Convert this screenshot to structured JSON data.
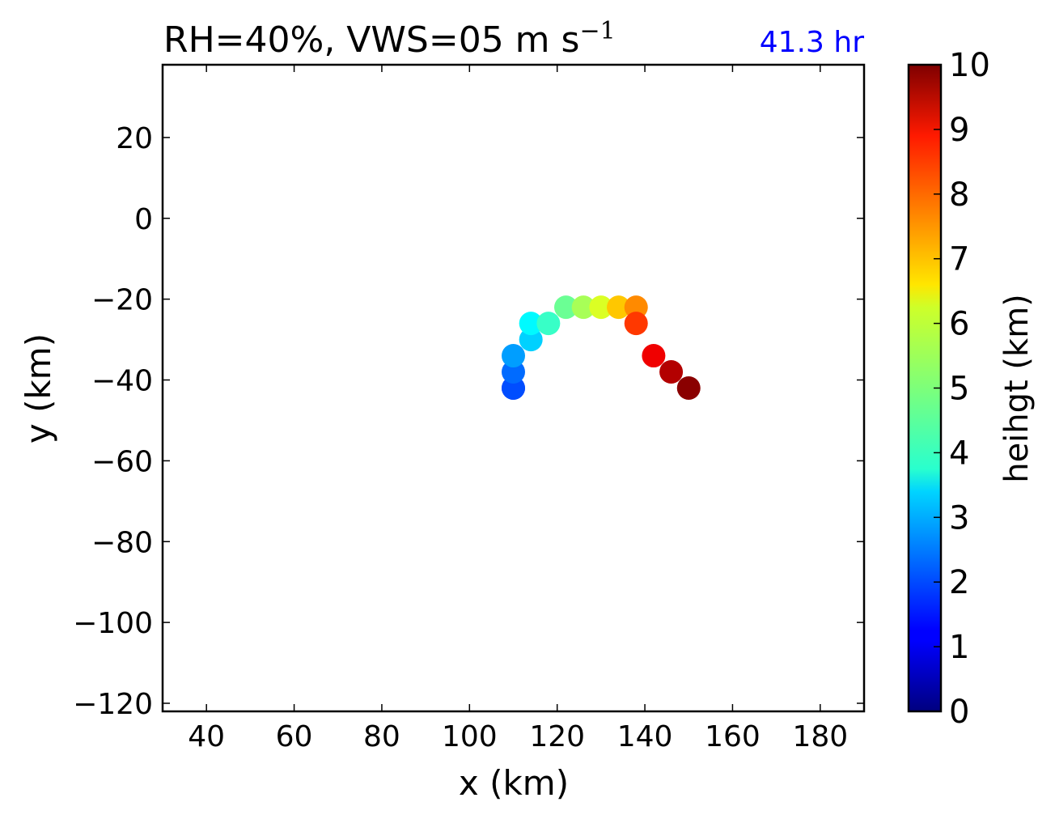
{
  "chart_data": {
    "type": "scatter",
    "title_main": "RH=40%, VWS=05 m s",
    "title_exp": "−1",
    "time_label": "41.3 hr",
    "time_color": "#0000ff",
    "xlabel": "x (km)",
    "ylabel": "y (km)",
    "xlim": [
      30,
      190
    ],
    "ylim": [
      -122,
      38
    ],
    "xticks": [
      40,
      60,
      80,
      100,
      120,
      140,
      160,
      180
    ],
    "xtick_labels": [
      "40",
      "60",
      "80",
      "100",
      "120",
      "140",
      "160",
      "180"
    ],
    "yticks": [
      20,
      0,
      -20,
      -40,
      -60,
      -80,
      -100,
      -120
    ],
    "ytick_labels": [
      "20",
      "0",
      "−20",
      "−40",
      "−60",
      "−80",
      "−100",
      "−120"
    ],
    "colorbar": {
      "label": "heihgt (km)",
      "colormap": "jet",
      "range": [
        0,
        10
      ],
      "ticks": [
        0,
        1,
        2,
        3,
        4,
        5,
        6,
        7,
        8,
        9,
        10
      ],
      "tick_labels": [
        "0",
        "1",
        "2",
        "3",
        "4",
        "5",
        "6",
        "7",
        "8",
        "9",
        "10"
      ]
    },
    "points": [
      {
        "x": 110,
        "y": -42,
        "height": 1.5
      },
      {
        "x": 110,
        "y": -42,
        "height": 2.0
      },
      {
        "x": 110,
        "y": -38,
        "height": 2.3
      },
      {
        "x": 110,
        "y": -34,
        "height": 2.8
      },
      {
        "x": 114,
        "y": -30,
        "height": 3.3
      },
      {
        "x": 114,
        "y": -26,
        "height": 3.7
      },
      {
        "x": 118,
        "y": -26,
        "height": 4.3
      },
      {
        "x": 122,
        "y": -22,
        "height": 4.8
      },
      {
        "x": 126,
        "y": -22,
        "height": 5.4
      },
      {
        "x": 130,
        "y": -22,
        "height": 5.9
      },
      {
        "x": 134,
        "y": -22,
        "height": 6.8
      },
      {
        "x": 138,
        "y": -22,
        "height": 7.4
      },
      {
        "x": 138,
        "y": -26,
        "height": 8.2
      },
      {
        "x": 142,
        "y": -34,
        "height": 8.9
      },
      {
        "x": 146,
        "y": -38,
        "height": 9.5
      },
      {
        "x": 150,
        "y": -42,
        "height": 9.9
      }
    ]
  }
}
